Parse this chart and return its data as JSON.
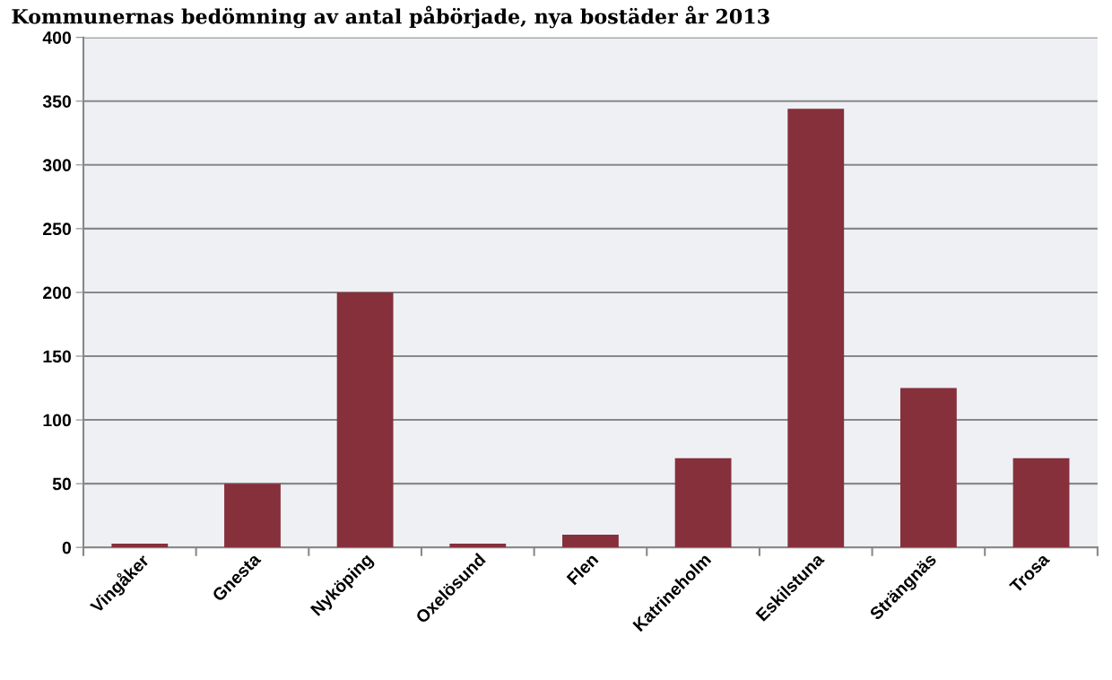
{
  "chart_data": {
    "type": "bar",
    "title": "Kommunernas bedömning av antal påbörjade, nya bostäder år 2013",
    "categories": [
      "Vingåker",
      "Gnesta",
      "Nyköping",
      "Oxelösund",
      "Flen",
      "Katrineholm",
      "Eskilstuna",
      "Strängnäs",
      "Trosa"
    ],
    "values": [
      3,
      50,
      200,
      3,
      10,
      70,
      344,
      125,
      70
    ],
    "color": "#86303c",
    "ylim": [
      0,
      400
    ],
    "yticks": [
      0,
      50,
      100,
      150,
      200,
      250,
      300,
      350,
      400
    ],
    "grid": "y"
  }
}
